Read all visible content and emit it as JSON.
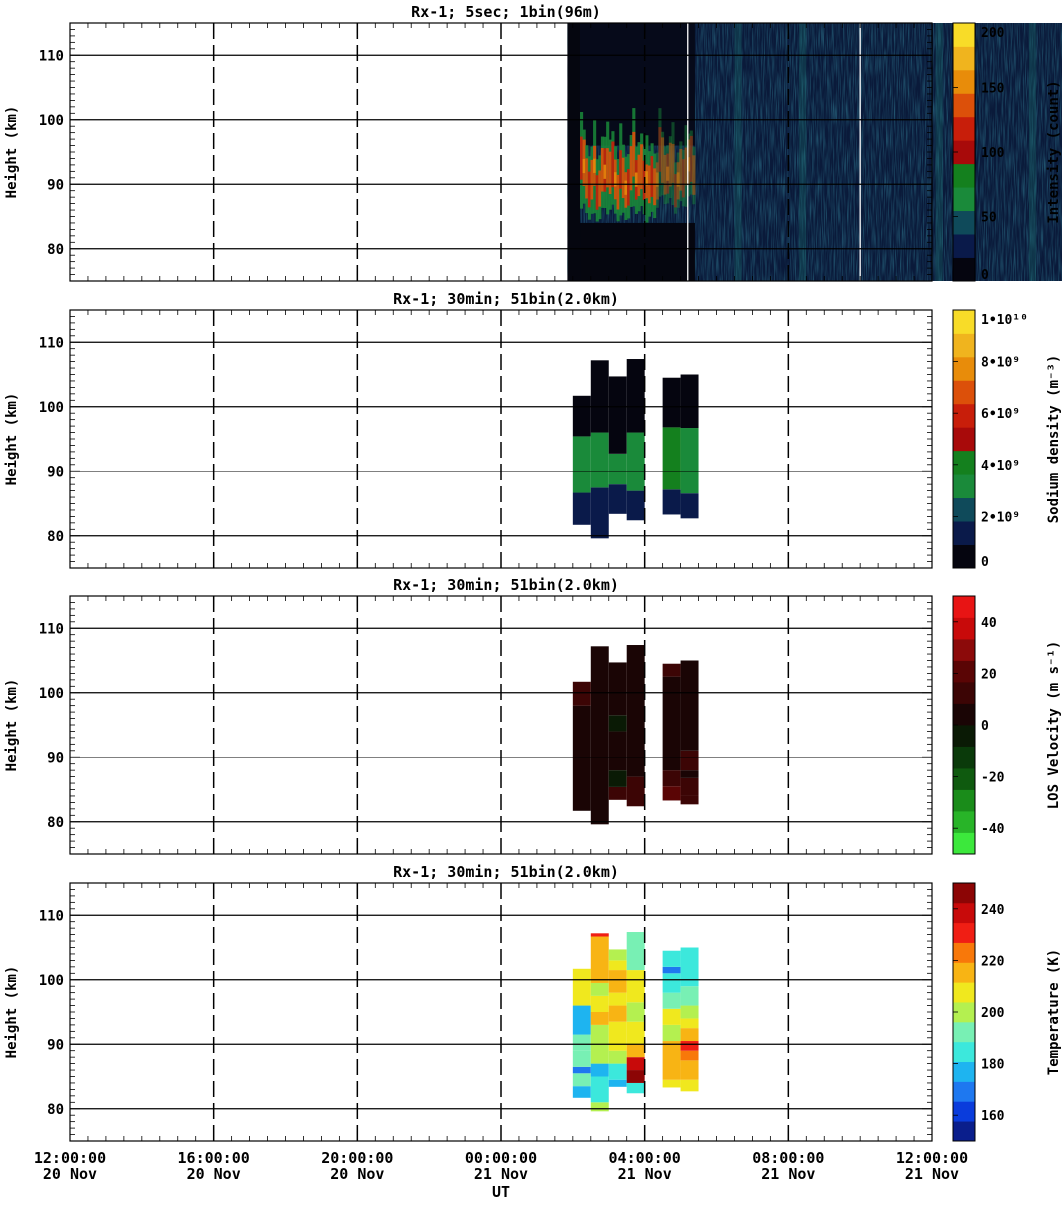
{
  "x_axis": {
    "label": "UT",
    "ticks": [
      {
        "time": "12:00:00",
        "date": "20 Nov"
      },
      {
        "time": "16:00:00",
        "date": "20 Nov"
      },
      {
        "time": "20:00:00",
        "date": "20 Nov"
      },
      {
        "time": "00:00:00",
        "date": "21 Nov"
      },
      {
        "time": "04:00:00",
        "date": "21 Nov"
      },
      {
        "time": "08:00:00",
        "date": "21 Nov"
      },
      {
        "time": "12:00:00",
        "date": "21 Nov"
      }
    ],
    "range_hours": [
      0,
      24
    ]
  },
  "colors": {
    "intensity_scale": [
      "#05050f",
      "#0a1a4a",
      "#0f4a5a",
      "#1a8a3a",
      "#14801e",
      "#a80a0a",
      "#c81e0a",
      "#dc500a",
      "#e88c0a",
      "#f0b41e",
      "#f8dc28"
    ],
    "density_scale": [
      "#05050f",
      "#0a1a4a",
      "#0f4a5a",
      "#1a8a3a",
      "#14801e",
      "#a80a0a",
      "#c81e0a",
      "#dc500a",
      "#e88c0a",
      "#f0b41e",
      "#f8dc28"
    ],
    "velocity_scale": [
      "#3ce83c",
      "#28b428",
      "#1a8c1a",
      "#0f5a0f",
      "#0a3a0a",
      "#0a1a05",
      "#1a0505",
      "#3c0505",
      "#5a0505",
      "#8c0a0a",
      "#c80a0a",
      "#e81414"
    ],
    "temperature_scale": [
      "#0a1e8c",
      "#0a3cdc",
      "#1e78f0",
      "#1eb4f0",
      "#3ce8dc",
      "#78f0b4",
      "#b4f050",
      "#f0e81e",
      "#f8b414",
      "#f8780a",
      "#f01e14",
      "#c80a0a",
      "#8c0505"
    ]
  },
  "chart_data": [
    {
      "type": "heatmap",
      "title": "Rx-1;  5sec; 1bin(96m)",
      "ylabel": "Height (km)",
      "xlabel": "UT",
      "ylim": [
        75,
        115
      ],
      "yticks": [
        80,
        90,
        100,
        110
      ],
      "colorbar": {
        "label": "Intensity (count)",
        "ticks": [
          "0",
          "50",
          "100",
          "150",
          "200"
        ],
        "range": [
          0,
          200
        ]
      },
      "data_extent_hours": [
        13.85,
        28.5
      ],
      "features": [
        {
          "description": "strong sodium layer signal",
          "hours": [
            14.2,
            17.4
          ],
          "height_km": [
            84,
            96
          ],
          "value": 120
        },
        {
          "description": "background noise",
          "hours": [
            17.4,
            28.5
          ],
          "height_km": [
            75,
            115
          ],
          "value": 30
        }
      ]
    },
    {
      "type": "heatmap",
      "title": "Rx-1; 30min; 51bin(2.0km)",
      "ylabel": "Height (km)",
      "ylim": [
        75,
        115
      ],
      "yticks": [
        80,
        90,
        100,
        110
      ],
      "colorbar": {
        "label": "Sodium density (m⁻³)",
        "ticks": [
          "0",
          "2•10⁹",
          "4•10⁹",
          "6•10⁹",
          "8•10⁹",
          "1•10¹⁰"
        ],
        "range": [
          0,
          10000000000.0
        ]
      },
      "columns": [
        {
          "start_h": 14.0,
          "end_h": 14.5,
          "bottom_km": 81.7,
          "top_km": 101.7,
          "cells": [
            {
              "h0": 81.7,
              "h1": 86.7,
              "value": 1000000000.0
            },
            {
              "h0": 86.7,
              "h1": 95.4,
              "value": 2800000000.0
            },
            {
              "h0": 95.4,
              "h1": 101.7,
              "value": 800000000.0
            }
          ]
        },
        {
          "start_h": 14.5,
          "end_h": 15.0,
          "bottom_km": 79.6,
          "top_km": 107.2,
          "cells": [
            {
              "h0": 79.6,
              "h1": 87.5,
              "value": 1000000000.0
            },
            {
              "h0": 87.5,
              "h1": 96.0,
              "value": 3000000000.0
            },
            {
              "h0": 96.0,
              "h1": 107.2,
              "value": 800000000.0
            }
          ]
        },
        {
          "start_h": 15.0,
          "end_h": 15.5,
          "bottom_km": 83.4,
          "top_km": 104.7,
          "cells": [
            {
              "h0": 83.4,
              "h1": 88.0,
              "value": 1200000000.0
            },
            {
              "h0": 88.0,
              "h1": 92.7,
              "value": 3200000000.0
            },
            {
              "h0": 92.7,
              "h1": 104.7,
              "value": 900000000.0
            }
          ]
        },
        {
          "start_h": 15.5,
          "end_h": 16.0,
          "bottom_km": 82.4,
          "top_km": 107.4,
          "cells": [
            {
              "h0": 82.4,
              "h1": 87.0,
              "value": 1000000000.0
            },
            {
              "h0": 87.0,
              "h1": 96.0,
              "value": 3600000000.0
            },
            {
              "h0": 96.0,
              "h1": 107.4,
              "value": 800000000.0
            }
          ]
        },
        {
          "start_h": 16.5,
          "end_h": 17.0,
          "bottom_km": 83.3,
          "top_km": 104.5,
          "cells": [
            {
              "h0": 83.3,
              "h1": 87.2,
              "value": 1200000000.0
            },
            {
              "h0": 87.2,
              "h1": 96.8,
              "value": 3800000000.0
            },
            {
              "h0": 96.8,
              "h1": 104.5,
              "value": 800000000.0
            }
          ]
        },
        {
          "start_h": 17.0,
          "end_h": 17.5,
          "bottom_km": 82.7,
          "top_km": 105.0,
          "cells": [
            {
              "h0": 82.7,
              "h1": 86.6,
              "value": 1200000000.0
            },
            {
              "h0": 86.6,
              "h1": 96.7,
              "value": 3600000000.0
            },
            {
              "h0": 96.7,
              "h1": 105.0,
              "value": 800000000.0
            }
          ]
        }
      ]
    },
    {
      "type": "heatmap",
      "title": "Rx-1; 30min; 51bin(2.0km)",
      "ylabel": "Height (km)",
      "ylim": [
        75,
        115
      ],
      "yticks": [
        80,
        90,
        100,
        110
      ],
      "colorbar": {
        "label": "LOS Velocity (m s⁻¹)",
        "ticks": [
          "-40",
          "-20",
          "0",
          "20",
          "40"
        ],
        "range": [
          -50,
          50
        ]
      },
      "columns": [
        {
          "start_h": 14.0,
          "end_h": 14.5,
          "bottom_km": 81.7,
          "top_km": 101.7,
          "cells": [
            {
              "h0": 81.7,
              "h1": 98.0,
              "value": 5
            },
            {
              "h0": 98.0,
              "h1": 101.7,
              "value": 12
            }
          ]
        },
        {
          "start_h": 14.5,
          "end_h": 15.0,
          "bottom_km": 79.6,
          "top_km": 107.2,
          "cells": [
            {
              "h0": 79.6,
              "h1": 107.2,
              "value": 5
            }
          ]
        },
        {
          "start_h": 15.0,
          "end_h": 15.5,
          "bottom_km": 83.4,
          "top_km": 104.7,
          "cells": [
            {
              "h0": 83.4,
              "h1": 85.4,
              "value": 15
            },
            {
              "h0": 85.4,
              "h1": 88.0,
              "value": -8
            },
            {
              "h0": 88.0,
              "h1": 94.0,
              "value": 4
            },
            {
              "h0": 94.0,
              "h1": 96.5,
              "value": -8
            },
            {
              "h0": 96.5,
              "h1": 104.7,
              "value": 5
            }
          ]
        },
        {
          "start_h": 15.5,
          "end_h": 16.0,
          "bottom_km": 82.4,
          "top_km": 107.4,
          "cells": [
            {
              "h0": 82.4,
              "h1": 85.0,
              "value": 15
            },
            {
              "h0": 85.0,
              "h1": 87.0,
              "value": 10
            },
            {
              "h0": 87.0,
              "h1": 107.4,
              "value": 5
            }
          ]
        },
        {
          "start_h": 16.5,
          "end_h": 17.0,
          "bottom_km": 83.3,
          "top_km": 104.5,
          "cells": [
            {
              "h0": 83.3,
              "h1": 85.5,
              "value": 18
            },
            {
              "h0": 85.5,
              "h1": 88.0,
              "value": 10
            },
            {
              "h0": 88.0,
              "h1": 102.5,
              "value": 5
            },
            {
              "h0": 102.5,
              "h1": 104.5,
              "value": 15
            }
          ]
        },
        {
          "start_h": 17.0,
          "end_h": 17.5,
          "bottom_km": 82.7,
          "top_km": 105.0,
          "cells": [
            {
              "h0": 82.7,
              "h1": 84.0,
              "value": 15
            },
            {
              "h0": 84.0,
              "h1": 86.8,
              "value": 10
            },
            {
              "h0": 86.8,
              "h1": 88.0,
              "value": 5
            },
            {
              "h0": 88.0,
              "h1": 91.0,
              "value": 10
            },
            {
              "h0": 91.0,
              "h1": 105.0,
              "value": 5
            }
          ]
        }
      ]
    },
    {
      "type": "heatmap",
      "title": "Rx-1; 30min; 51bin(2.0km)",
      "ylabel": "Height (km)",
      "ylim": [
        75,
        115
      ],
      "yticks": [
        80,
        90,
        100,
        110
      ],
      "xlabel": "UT",
      "colorbar": {
        "label": "Temperature (K)",
        "ticks": [
          "160",
          "180",
          "200",
          "220",
          "240"
        ],
        "range": [
          150,
          250
        ]
      },
      "columns": [
        {
          "start_h": 14.0,
          "end_h": 14.5,
          "cells": [
            {
              "h0": 81.7,
              "h1": 83.5,
              "value": 178
            },
            {
              "h0": 83.5,
              "h1": 85.5,
              "value": 190
            },
            {
              "h0": 85.5,
              "h1": 86.5,
              "value": 172
            },
            {
              "h0": 86.5,
              "h1": 89.0,
              "value": 195
            },
            {
              "h0": 89.0,
              "h1": 91.5,
              "value": 190
            },
            {
              "h0": 91.5,
              "h1": 96.0,
              "value": 180
            },
            {
              "h0": 96.0,
              "h1": 100.0,
              "value": 205
            },
            {
              "h0": 100.0,
              "h1": 101.7,
              "value": 210
            }
          ]
        },
        {
          "start_h": 14.5,
          "end_h": 15.0,
          "cells": [
            {
              "h0": 79.6,
              "h1": 81.0,
              "value": 200
            },
            {
              "h0": 81.0,
              "h1": 85.0,
              "value": 188
            },
            {
              "h0": 85.0,
              "h1": 87.0,
              "value": 175
            },
            {
              "h0": 87.0,
              "h1": 93.0,
              "value": 200
            },
            {
              "h0": 93.0,
              "h1": 95.0,
              "value": 212
            },
            {
              "h0": 95.0,
              "h1": 97.5,
              "value": 205
            },
            {
              "h0": 97.5,
              "h1": 99.5,
              "value": 198
            },
            {
              "h0": 99.5,
              "h1": 106.7,
              "value": 218
            },
            {
              "h0": 106.7,
              "h1": 107.2,
              "value": 228
            }
          ]
        },
        {
          "start_h": 15.0,
          "end_h": 15.5,
          "cells": [
            {
              "h0": 83.4,
              "h1": 84.5,
              "value": 175
            },
            {
              "h0": 84.5,
              "h1": 87.0,
              "value": 182
            },
            {
              "h0": 87.0,
              "h1": 89.0,
              "value": 198
            },
            {
              "h0": 89.0,
              "h1": 93.5,
              "value": 210
            },
            {
              "h0": 93.5,
              "h1": 96.0,
              "value": 215
            },
            {
              "h0": 96.0,
              "h1": 98.0,
              "value": 205
            },
            {
              "h0": 98.0,
              "h1": 101.5,
              "value": 218
            },
            {
              "h0": 101.5,
              "h1": 103.0,
              "value": 208
            },
            {
              "h0": 103.0,
              "h1": 104.7,
              "value": 198
            }
          ]
        },
        {
          "start_h": 15.5,
          "end_h": 16.0,
          "cells": [
            {
              "h0": 82.4,
              "h1": 84.0,
              "value": 185
            },
            {
              "h0": 84.0,
              "h1": 86.0,
              "value": 245
            },
            {
              "h0": 86.0,
              "h1": 88.0,
              "value": 235
            },
            {
              "h0": 88.0,
              "h1": 90.0,
              "value": 218
            },
            {
              "h0": 90.0,
              "h1": 93.5,
              "value": 205
            },
            {
              "h0": 93.5,
              "h1": 96.5,
              "value": 200
            },
            {
              "h0": 96.5,
              "h1": 101.5,
              "value": 210
            },
            {
              "h0": 101.5,
              "h1": 107.4,
              "value": 195
            }
          ]
        },
        {
          "start_h": 16.5,
          "end_h": 17.0,
          "cells": [
            {
              "h0": 83.3,
              "h1": 84.5,
              "value": 210
            },
            {
              "h0": 84.5,
              "h1": 90.5,
              "value": 218
            },
            {
              "h0": 90.5,
              "h1": 93.0,
              "value": 200
            },
            {
              "h0": 93.0,
              "h1": 95.5,
              "value": 205
            },
            {
              "h0": 95.5,
              "h1": 98.0,
              "value": 195
            },
            {
              "h0": 98.0,
              "h1": 101.0,
              "value": 185
            },
            {
              "h0": 101.0,
              "h1": 102.0,
              "value": 170
            },
            {
              "h0": 102.0,
              "h1": 104.5,
              "value": 188
            }
          ]
        },
        {
          "start_h": 17.0,
          "end_h": 17.5,
          "cells": [
            {
              "h0": 82.7,
              "h1": 84.5,
              "value": 205
            },
            {
              "h0": 84.5,
              "h1": 87.5,
              "value": 212
            },
            {
              "h0": 87.5,
              "h1": 89.0,
              "value": 220
            },
            {
              "h0": 89.0,
              "h1": 90.5,
              "value": 230
            },
            {
              "h0": 90.5,
              "h1": 92.5,
              "value": 218
            },
            {
              "h0": 92.5,
              "h1": 94.0,
              "value": 210
            },
            {
              "h0": 94.0,
              "h1": 96.0,
              "value": 198
            },
            {
              "h0": 96.0,
              "h1": 99.0,
              "value": 190
            },
            {
              "h0": 99.0,
              "h1": 105.0,
              "value": 183
            }
          ]
        }
      ]
    }
  ]
}
